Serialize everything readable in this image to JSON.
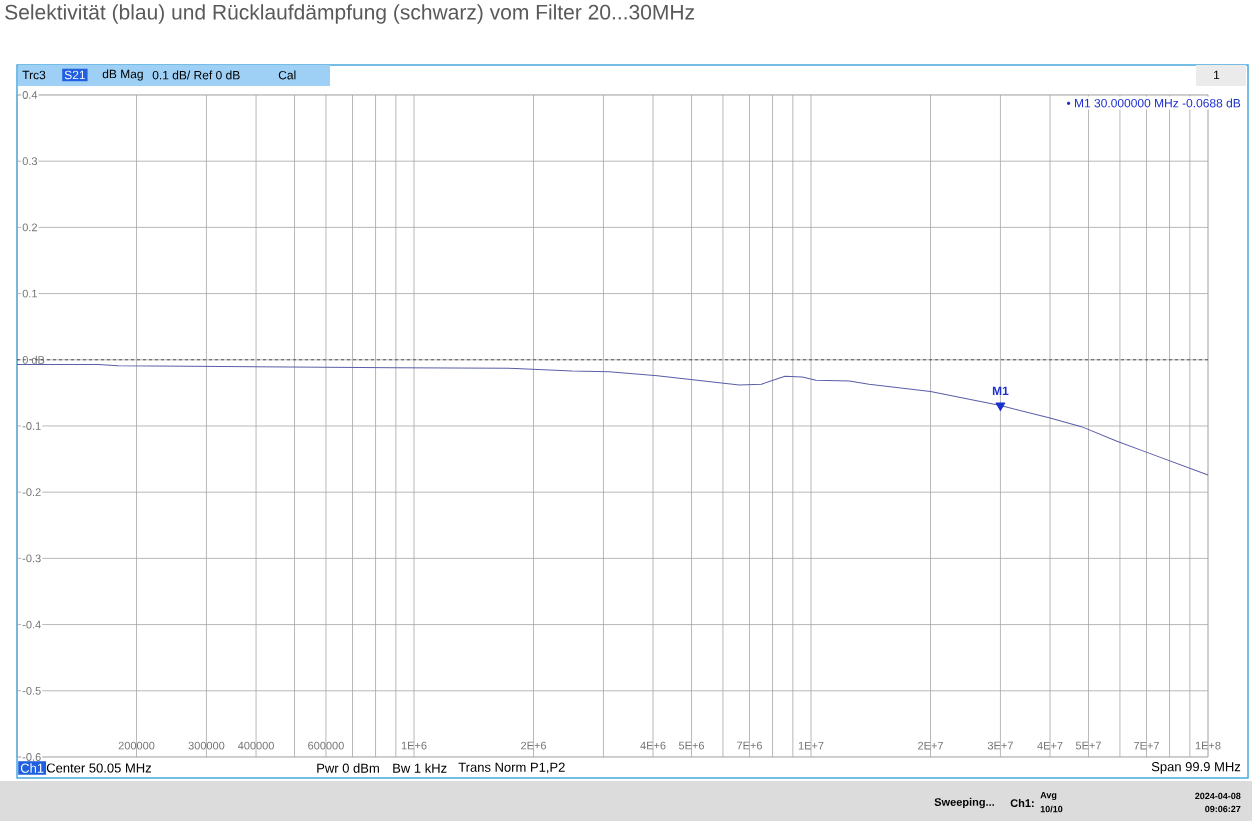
{
  "chart_data": {
    "type": "line",
    "title": "Selektivität (blau) und Rücklaufdämpfung (schwarz) vom Filter 20...30MHz",
    "log": "x",
    "grid": true,
    "marker": "none",
    "line_style": "solid",
    "xlim": [
      100000,
      100000000
    ],
    "ylim": [
      -0.6,
      0.4
    ],
    "xticks": [
      200000,
      300000,
      400000,
      {
        "value": 500000,
        "label": null
      },
      600000,
      {
        "value": 700000,
        "label": null
      },
      {
        "value": 800000,
        "label": null
      },
      {
        "value": 900000,
        "label": null
      },
      {
        "value": 1000000,
        "label": "1E+6"
      },
      {
        "value": 2000000,
        "label": "2E+6"
      },
      {
        "value": 3000000,
        "label": null
      },
      {
        "value": 4000000,
        "label": "4E+6"
      },
      {
        "value": 5000000,
        "label": "5E+6"
      },
      {
        "value": 6000000,
        "label": null
      },
      {
        "value": 7000000,
        "label": "7E+6"
      },
      {
        "value": 8000000,
        "label": null
      },
      {
        "value": 9000000,
        "label": null
      },
      {
        "value": 10000000,
        "label": "1E+7"
      },
      {
        "value": 20000000,
        "label": "2E+7"
      },
      {
        "value": 30000000,
        "label": "3E+7"
      },
      {
        "value": 40000000,
        "label": "4E+7"
      },
      {
        "value": 50000000,
        "label": "5E+7"
      },
      {
        "value": 60000000,
        "label": null
      },
      {
        "value": 70000000,
        "label": "7E+7"
      },
      {
        "value": 80000000,
        "label": null
      },
      {
        "value": 90000000,
        "label": null
      },
      {
        "value": 100000000,
        "label": "1E+8"
      }
    ],
    "yticks": [
      -0.6,
      -0.5,
      -0.4,
      -0.3,
      -0.2,
      -0.1,
      {
        "value": 0,
        "label": "0 dB"
      },
      0.1,
      0.2,
      0.3,
      0.4
    ],
    "ref_lines": [
      {
        "axis": "y",
        "value": 0,
        "color": "#333333",
        "line_style": "dashed"
      }
    ],
    "series": [
      {
        "color": "#5b5ea6",
        "x": [
          100000,
          160000,
          180000,
          330000,
          900000,
          1800000,
          2500000,
          3100000,
          4100000,
          6600000,
          7500000,
          8300000,
          8600000,
          9500000,
          10300000,
          12500000,
          14000000,
          20000000,
          30000000,
          40000000,
          48000000,
          59000000,
          71000000,
          100000000
        ],
        "values": [
          -0.007,
          -0.007,
          -0.009,
          -0.01,
          -0.012,
          -0.013,
          -0.017,
          -0.018,
          -0.024,
          -0.038,
          -0.037,
          -0.028,
          -0.025,
          -0.026,
          -0.031,
          -0.032,
          -0.037,
          -0.048,
          -0.069,
          -0.088,
          -0.101,
          -0.123,
          -0.141,
          -0.174
        ]
      },
      {
        "type": "scatter",
        "name": "M1",
        "marker": "triangle",
        "color": "#1a2fd0",
        "x": [
          30000000
        ],
        "values": [
          -0.069
        ]
      }
    ],
    "annotations": [
      "Trc3",
      "S21",
      "dB Mag",
      "0.1 dB/ Ref 0 dB",
      "Cal",
      "1",
      "• M1 30.000000 MHz -0.0688 dB",
      "Ch1",
      "Center 50.05 MHz",
      "Pwr 0 dBm",
      "Bw 1 kHz",
      "Trans Norm P1,P2",
      "Span 99.9 MHz",
      "Sweeping...",
      "Ch1:",
      "Avg",
      "10/10",
      "2024-04-08",
      "09:06:27"
    ]
  }
}
